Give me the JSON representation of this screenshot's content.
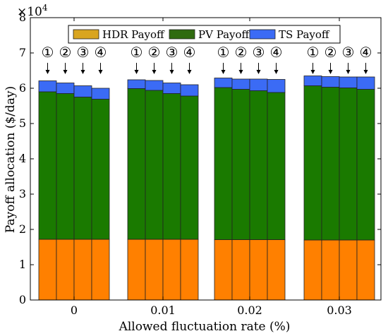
{
  "chart_data": {
    "type": "bar",
    "stacked": true,
    "title": "",
    "xlabel": "Allowed fluctuation rate (%)",
    "ylabel": "Payoff allocation ($/day)",
    "y_exponent_label": "×10",
    "y_exponent_power": "4",
    "ylim": [
      0,
      80000
    ],
    "yticks": [
      "0",
      "1",
      "2",
      "3",
      "4",
      "5",
      "6",
      "7",
      "8"
    ],
    "categories": [
      "0",
      "0.01",
      "0.02",
      "0.03"
    ],
    "case_markers": [
      "①",
      "②",
      "③",
      "④"
    ],
    "legend_position": "top",
    "series": [
      {
        "name": "HDR Payoff",
        "color": "#ff8000",
        "legend_color": "#d9a520",
        "values": [
          [
            17200,
            17200,
            17200,
            17200
          ],
          [
            17200,
            17200,
            17200,
            17200
          ],
          [
            17100,
            17100,
            17100,
            17100
          ],
          [
            17000,
            17000,
            17000,
            17000
          ]
        ]
      },
      {
        "name": "PV Payoff",
        "color": "#1a7a00",
        "legend_color": "#2f6b0f",
        "values": [
          [
            41800,
            41300,
            40300,
            39700
          ],
          [
            42700,
            42200,
            41300,
            40600
          ],
          [
            43100,
            42600,
            42200,
            41700
          ],
          [
            43700,
            43300,
            43100,
            42700
          ]
        ]
      },
      {
        "name": "TS Payoff",
        "color": "#3b6bf5",
        "legend_color": "#3b6bf5",
        "values": [
          [
            3100,
            3000,
            3200,
            3100
          ],
          [
            2500,
            2800,
            3000,
            3200
          ],
          [
            2700,
            2900,
            3300,
            3700
          ],
          [
            2800,
            3000,
            3100,
            3500
          ]
        ]
      }
    ]
  }
}
